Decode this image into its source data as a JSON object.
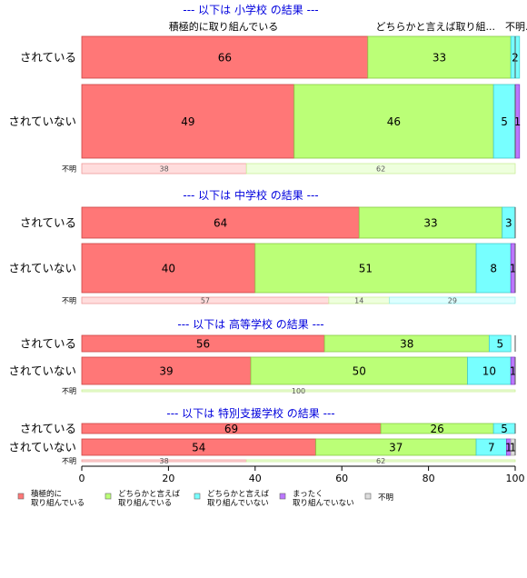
{
  "chart_data": {
    "type": "bar",
    "orientation": "horizontal",
    "stacked": true,
    "xlim": [
      0,
      100
    ],
    "x_ticks": [
      0,
      20,
      40,
      60,
      80,
      100
    ],
    "column_headers": [
      "積極的に取り組んでいる",
      "どちらかと言えば取り組...",
      "不明..."
    ],
    "legend": {
      "placement": "bottom",
      "entries": [
        {
          "lines": [
            "積極的に",
            "取り組んでいる"
          ],
          "color": "#ff7777"
        },
        {
          "lines": [
            "どちらかと言えば",
            "取り組んでいる"
          ],
          "color": "#bbff77"
        },
        {
          "lines": [
            "どちらかと言えば",
            "取り組んでいない"
          ],
          "color": "#77ffff"
        },
        {
          "lines": [
            "まったく",
            "取り組んでいない"
          ],
          "color": "#bb77ff"
        },
        {
          "lines": [
            "不明"
          ],
          "color": "#dddddd"
        }
      ]
    },
    "groups": [
      {
        "title": "--- 以下は 小学校 の結果 ---",
        "rows": [
          {
            "label": "されている",
            "small": false,
            "values": [
              66,
              33,
              2,
              0
            ],
            "labels": [
              "66",
              "33",
              "2",
              ""
            ]
          },
          {
            "label": "されていない",
            "small": false,
            "values": [
              49,
              46,
              5,
              1
            ],
            "labels": [
              "49",
              "46",
              "5",
              "1"
            ]
          },
          {
            "label": "不明",
            "small": true,
            "values": [
              38,
              62
            ],
            "labels": [
              "38",
              "62"
            ]
          }
        ]
      },
      {
        "title": "--- 以下は 中学校 の結果 ---",
        "rows": [
          {
            "label": "されている",
            "small": false,
            "values": [
              64,
              33,
              3,
              0
            ],
            "labels": [
              "64",
              "33",
              "3",
              ""
            ]
          },
          {
            "label": "されていない",
            "small": false,
            "values": [
              40,
              51,
              8,
              1
            ],
            "labels": [
              "40",
              "51",
              "8",
              "1"
            ]
          },
          {
            "label": "不明",
            "small": true,
            "values": [
              57,
              14,
              29
            ],
            "labels": [
              "57",
              "14",
              "29"
            ]
          }
        ]
      },
      {
        "title": "--- 以下は 高等学校 の結果 ---",
        "rows": [
          {
            "label": "されている",
            "small": false,
            "values": [
              56,
              38,
              5,
              0
            ],
            "labels": [
              "56",
              "38",
              "5",
              ""
            ]
          },
          {
            "label": "されていない",
            "small": false,
            "values": [
              39,
              50,
              10,
              1
            ],
            "labels": [
              "39",
              "50",
              "10",
              "1"
            ]
          },
          {
            "label": "不明",
            "small": true,
            "values": [
              0,
              100
            ],
            "labels": [
              "",
              "100"
            ]
          }
        ]
      },
      {
        "title": "--- 以下は 特別支援学校 の結果 ---",
        "rows": [
          {
            "label": "されている",
            "small": false,
            "values": [
              69,
              26,
              5,
              0
            ],
            "labels": [
              "69",
              "26",
              "5",
              ""
            ]
          },
          {
            "label": "されていない",
            "small": false,
            "values": [
              54,
              37,
              7,
              1,
              1
            ],
            "labels": [
              "54",
              "37",
              "7",
              "1",
              "1"
            ]
          },
          {
            "label": "不明",
            "small": true,
            "values": [
              38,
              62
            ],
            "labels": [
              "38",
              "62"
            ]
          }
        ]
      }
    ]
  }
}
